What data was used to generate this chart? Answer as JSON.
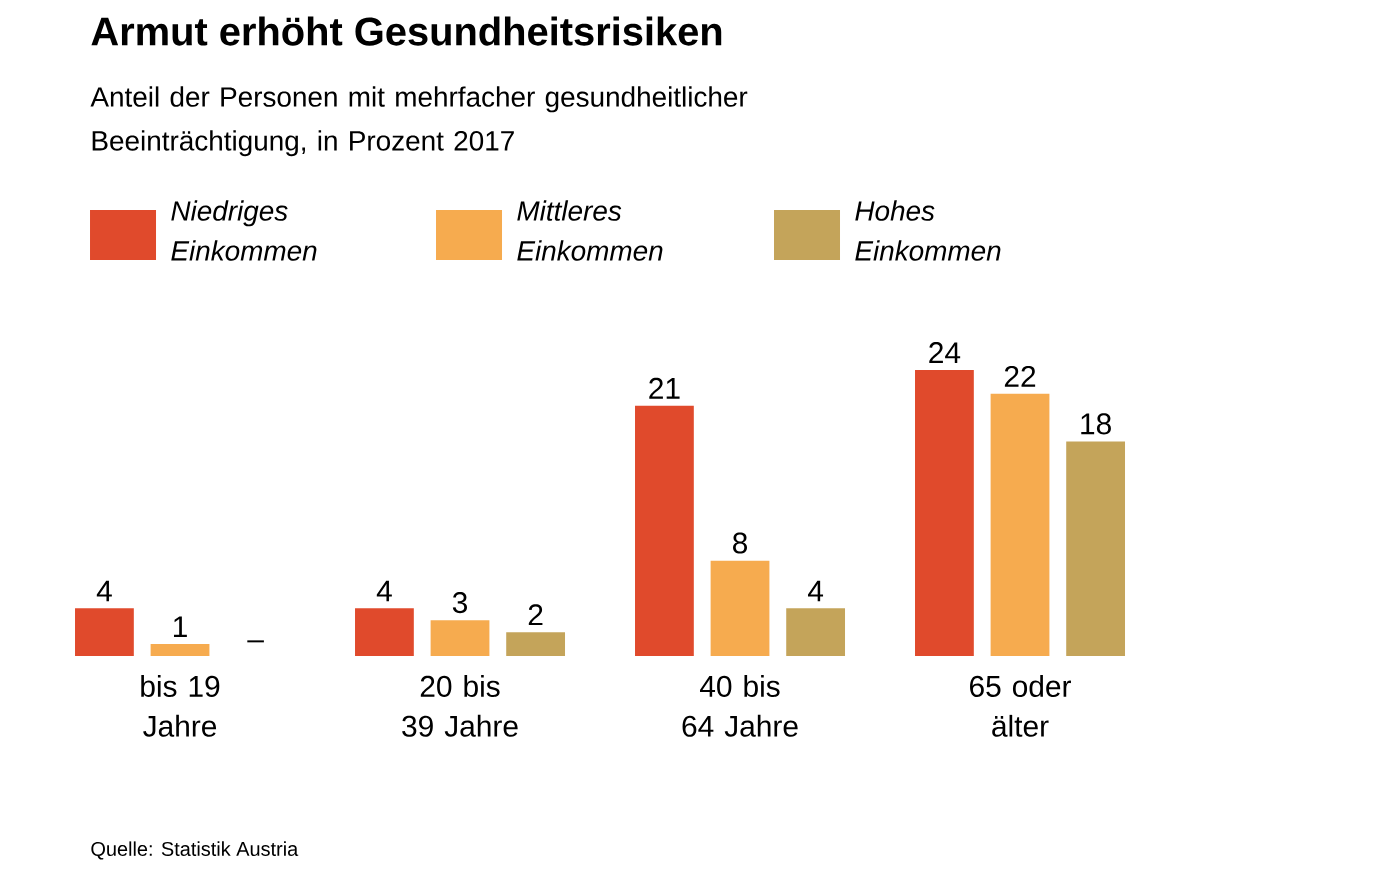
{
  "chart_data": {
    "type": "bar",
    "title": "Armut erhöht Gesundheitsrisiken",
    "subtitle": "Anteil der Personen mit mehrfacher gesundheitlicher Beeinträchtigung, in Prozent 2017",
    "categories": [
      "bis 19 Jahre",
      "20 bis 39 Jahre",
      "40 bis 64 Jahre",
      "65 oder älter"
    ],
    "series": [
      {
        "name": "Niedriges Einkommen",
        "color": "#e04a2c",
        "values": [
          4,
          4,
          21,
          24
        ],
        "value_labels": [
          "4",
          "4",
          "21",
          "24"
        ]
      },
      {
        "name": "Mittleres Einkommen",
        "color": "#f6ab4f",
        "values": [
          1,
          3,
          8,
          22
        ],
        "value_labels": [
          "1",
          "3",
          "8",
          "22"
        ]
      },
      {
        "name": "Hohes Einkommen",
        "color": "#c4a45a",
        "values": [
          null,
          2,
          4,
          18
        ],
        "value_labels": [
          "–",
          "2",
          "4",
          "18"
        ]
      }
    ],
    "legend": "top",
    "annotations": [
      "Quelle: Statistik Austria"
    ]
  }
}
